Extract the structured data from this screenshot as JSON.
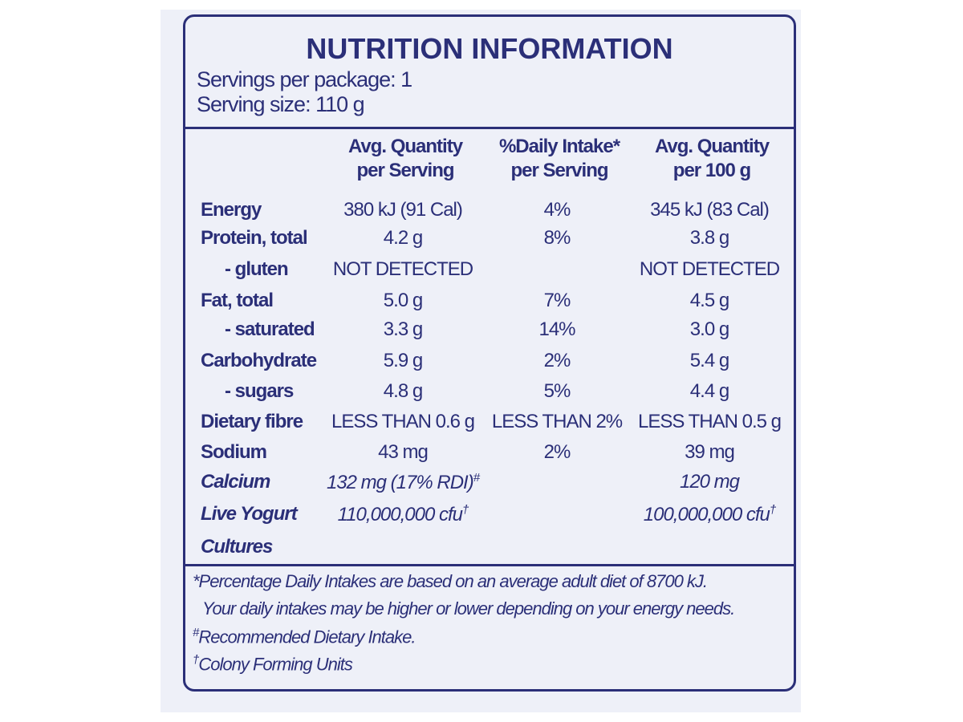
{
  "header": {
    "title": "NUTRITION INFORMATION",
    "servings_per_package": "Servings per package: 1",
    "serving_size": "Serving size: 110 g"
  },
  "table": {
    "columns": [
      [
        "Avg. Quantity",
        "per Serving"
      ],
      [
        "%Daily Intake*",
        "per Serving"
      ],
      [
        "Avg. Quantity",
        "per 100 g"
      ]
    ],
    "rows": [
      [
        "Energy",
        "380 kJ (91 Cal)",
        "4%",
        "345 kJ (83 Cal)"
      ],
      [
        "Protein, total",
        "4.2 g",
        "8%",
        "3.8 g"
      ],
      [
        "- gluten",
        "NOT DETECTED",
        null,
        "NOT DETECTED"
      ],
      [
        "Fat, total",
        "5.0 g",
        "7%",
        "4.5 g"
      ],
      [
        "- saturated",
        "3.3 g",
        "14%",
        "3.0 g"
      ],
      [
        "Carbohydrate",
        "5.9 g",
        "2%",
        "5.4 g"
      ],
      [
        "- sugars",
        "4.8 g",
        "5%",
        "4.4 g"
      ],
      [
        "Dietary fibre",
        "LESS THAN 0.6 g",
        "LESS THAN 2%",
        "LESS THAN 0.5 g"
      ],
      [
        "Sodium",
        "43 mg",
        "2%",
        "39 mg"
      ],
      [
        "Calcium",
        {
          "text": "132 mg (17% RDI)",
          "sup": "#"
        },
        null,
        "120 mg"
      ],
      [
        [
          "Live Yogurt",
          "Cultures"
        ],
        {
          "text": "110,000,000 cfu",
          "sup": "†"
        },
        null,
        {
          "text": "100,000,000 cfu",
          "sup": "†"
        }
      ]
    ]
  },
  "footnotes": [
    {
      "text": "*Percentage Daily Intakes are based on an average adult diet of 8700 kJ."
    },
    {
      "text": "Your daily intakes may be higher or lower depending on your energy needs."
    },
    {
      "sup": "#",
      "text": "Recommended Dietary Intake."
    },
    {
      "sup": "†",
      "text": "Colony Forming Units"
    }
  ]
}
